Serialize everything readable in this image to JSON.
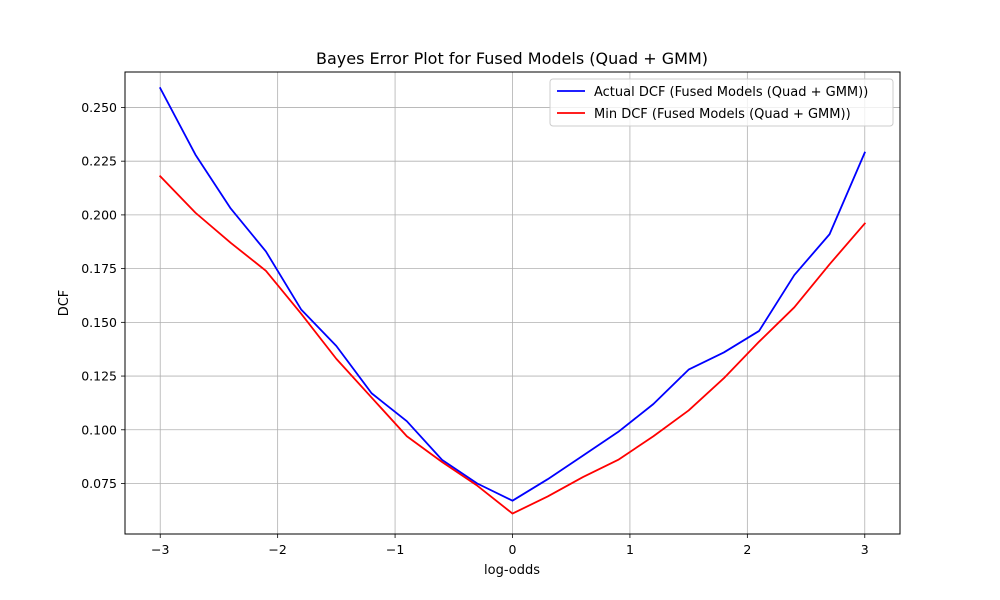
{
  "chart_data": {
    "type": "line",
    "title": "Bayes Error Plot for Fused Models (Quad + GMM)",
    "xlabel": "log-odds",
    "ylabel": "DCF",
    "xlim": [
      -3.3,
      3.3
    ],
    "ylim": [
      0.0515,
      0.2665
    ],
    "xticks": [
      -3,
      -2,
      -1,
      0,
      1,
      2,
      3
    ],
    "xtick_labels": [
      "−3",
      "−2",
      "−1",
      "0",
      "1",
      "2",
      "3"
    ],
    "yticks": [
      0.075,
      0.1,
      0.125,
      0.15,
      0.175,
      0.2,
      0.225,
      0.25
    ],
    "ytick_labels": [
      "0.075",
      "0.100",
      "0.125",
      "0.150",
      "0.175",
      "0.200",
      "0.225",
      "0.250"
    ],
    "grid": true,
    "legend_position": "top-right",
    "x": [
      -3.0,
      -2.7,
      -2.4,
      -2.1,
      -1.8,
      -1.5,
      -1.2,
      -0.9,
      -0.6,
      -0.3,
      0.0,
      0.3,
      0.6,
      0.9,
      1.2,
      1.5,
      1.8,
      2.1,
      2.4,
      2.7,
      3.0
    ],
    "series": [
      {
        "name": "Actual DCF (Fused Models (Quad + GMM))",
        "color": "#0000ff",
        "values": [
          0.259,
          0.228,
          0.203,
          0.183,
          0.156,
          0.139,
          0.117,
          0.104,
          0.086,
          0.075,
          0.067,
          0.077,
          0.088,
          0.099,
          0.112,
          0.128,
          0.136,
          0.146,
          0.172,
          0.191,
          0.229
        ]
      },
      {
        "name": "Min DCF (Fused Models (Quad + GMM))",
        "color": "#ff0000",
        "values": [
          0.218,
          0.201,
          0.187,
          0.174,
          0.154,
          0.133,
          0.115,
          0.097,
          0.085,
          0.074,
          0.061,
          0.069,
          0.078,
          0.086,
          0.097,
          0.109,
          0.124,
          0.141,
          0.157,
          0.177,
          0.196
        ]
      }
    ]
  }
}
